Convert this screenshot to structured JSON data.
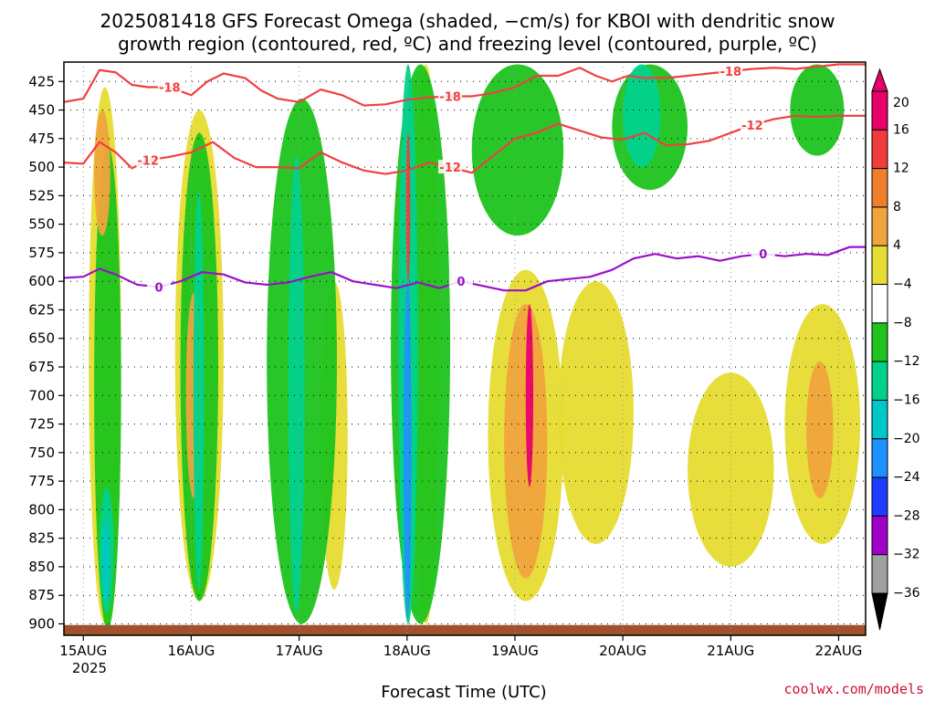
{
  "title_line1": "2025081418 GFS Forecast Omega (shaded, −cm/s) for KBOI with dendritic snow",
  "title_line2": "growth region (contoured, red, ºC) and freezing level (contoured, purple, ºC)",
  "credit": "coolwx.com/models",
  "chart_data": {
    "type": "heatmap",
    "title": "2025081418 GFS Forecast Omega (shaded, −cm/s) for KBOI with dendritic snow growth region (contoured, red, ºC) and freezing level (contoured, purple, ºC)",
    "xlabel": "Forecast Time (UTC)",
    "ylabel": "",
    "x_ticks": [
      "15AUG",
      "16AUG",
      "17AUG",
      "18AUG",
      "19AUG",
      "20AUG",
      "21AUG",
      "22AUG"
    ],
    "x_year": "2025",
    "y_ticks": [
      425,
      450,
      475,
      500,
      525,
      550,
      575,
      600,
      625,
      650,
      675,
      700,
      725,
      750,
      775,
      800,
      825,
      850,
      875,
      900
    ],
    "ylim": [
      408,
      910
    ],
    "xlim": [
      -0.18,
      7.25
    ],
    "grid": true,
    "colorbar": {
      "ticks": [
        "20",
        "16",
        "12",
        "8",
        "4",
        "−4",
        "−8",
        "−12",
        "−16",
        "−20",
        "−24",
        "−28",
        "−32",
        "−36"
      ],
      "colors": [
        "#e8006a",
        "#f03c3c",
        "#f07f2d",
        "#f0a43c",
        "#e6dc32",
        "#ffffff",
        "#1ec31e",
        "#00d28c",
        "#00c8c8",
        "#1e90ff",
        "#1e3cff",
        "#a000c8",
        "#a0a0a0"
      ]
    },
    "contours": [
      {
        "name": "-18",
        "color": "#f04040",
        "label": "-18",
        "x": [
          -0.18,
          0.0,
          0.15,
          0.3,
          0.45,
          0.6,
          0.8,
          1.0,
          1.15,
          1.3,
          1.5,
          1.65,
          1.8,
          2.0,
          2.2,
          2.4,
          2.6,
          2.8,
          3.0,
          3.2,
          3.4,
          3.6,
          3.8,
          4.0,
          4.2,
          4.4,
          4.6,
          4.75,
          4.9,
          5.05,
          5.2,
          5.4,
          5.6,
          5.8,
          6.0,
          6.2,
          6.4,
          6.6,
          6.8,
          7.0,
          7.25
        ],
        "y": [
          443,
          440,
          415,
          417,
          428,
          430,
          430,
          437,
          425,
          418,
          422,
          433,
          440,
          443,
          432,
          437,
          446,
          445,
          441,
          439,
          438,
          438,
          435,
          430,
          420,
          420,
          413,
          420,
          425,
          420,
          422,
          422,
          420,
          418,
          416,
          414,
          413,
          414,
          412,
          410,
          410
        ]
      },
      {
        "name": "-12",
        "color": "#f04040",
        "label": "-12",
        "x": [
          -0.18,
          0.0,
          0.15,
          0.3,
          0.45,
          0.6,
          0.8,
          1.0,
          1.2,
          1.4,
          1.6,
          1.8,
          2.0,
          2.2,
          2.4,
          2.6,
          2.8,
          3.0,
          3.2,
          3.4,
          3.6,
          3.8,
          4.0,
          4.2,
          4.4,
          4.6,
          4.8,
          5.0,
          5.2,
          5.4,
          5.6,
          5.8,
          6.0,
          6.2,
          6.4,
          6.6,
          6.8,
          7.0,
          7.25
        ],
        "y": [
          496,
          497,
          478,
          487,
          501,
          494,
          491,
          487,
          478,
          492,
          500,
          500,
          501,
          487,
          496,
          503,
          506,
          503,
          496,
          500,
          505,
          490,
          475,
          470,
          462,
          468,
          474,
          476,
          470,
          481,
          480,
          477,
          470,
          463,
          458,
          455,
          456,
          455,
          455
        ]
      },
      {
        "name": "0",
        "color": "#9a10c8",
        "label": "0",
        "x": [
          -0.18,
          0.0,
          0.15,
          0.3,
          0.5,
          0.7,
          0.9,
          1.1,
          1.3,
          1.5,
          1.7,
          1.9,
          2.1,
          2.3,
          2.5,
          2.7,
          2.9,
          3.1,
          3.3,
          3.5,
          3.7,
          3.9,
          4.1,
          4.3,
          4.5,
          4.7,
          4.9,
          5.1,
          5.3,
          5.5,
          5.7,
          5.9,
          6.1,
          6.3,
          6.5,
          6.7,
          6.9,
          7.1,
          7.25
        ],
        "y": [
          597,
          596,
          589,
          594,
          603,
          605,
          600,
          592,
          594,
          601,
          603,
          601,
          596,
          592,
          600,
          603,
          606,
          601,
          606,
          600,
          604,
          608,
          608,
          600,
          598,
          596,
          590,
          580,
          576,
          580,
          578,
          582,
          578,
          576,
          578,
          576,
          577,
          570,
          570
        ]
      }
    ],
    "shaded_regions": [
      {
        "value": -8,
        "x": [
          0.1,
          0.35
        ],
        "y": [
          480,
          905
        ]
      },
      {
        "value": -12,
        "x": [
          0.15,
          0.28
        ],
        "y": [
          780,
          890
        ]
      },
      {
        "value": -16,
        "x": [
          0.18,
          0.24
        ],
        "y": [
          810,
          880
        ]
      },
      {
        "value": -8,
        "x": [
          0.9,
          1.25
        ],
        "y": [
          470,
          880
        ]
      },
      {
        "value": -12,
        "x": [
          1.02,
          1.12
        ],
        "y": [
          520,
          870
        ]
      },
      {
        "value": -8,
        "x": [
          1.7,
          2.35
        ],
        "y": [
          440,
          900
        ]
      },
      {
        "value": -12,
        "x": [
          1.9,
          2.05
        ],
        "y": [
          490,
          890
        ]
      },
      {
        "value": -8,
        "x": [
          2.85,
          3.4
        ],
        "y": [
          410,
          900
        ]
      },
      {
        "value": -12,
        "x": [
          2.92,
          3.1
        ],
        "y": [
          410,
          900
        ]
      },
      {
        "value": -20,
        "x": [
          2.97,
          3.04
        ],
        "y": [
          600,
          895
        ]
      },
      {
        "value": -8,
        "x": [
          3.6,
          4.45
        ],
        "y": [
          410,
          560
        ]
      },
      {
        "value": -8,
        "x": [
          4.9,
          5.6
        ],
        "y": [
          410,
          520
        ]
      },
      {
        "value": -12,
        "x": [
          5.0,
          5.35
        ],
        "y": [
          410,
          500
        ]
      },
      {
        "value": -8,
        "x": [
          6.55,
          7.05
        ],
        "y": [
          410,
          490
        ]
      },
      {
        "value": 4,
        "x": [
          0.05,
          0.35
        ],
        "y": [
          430,
          900
        ]
      },
      {
        "value": 8,
        "x": [
          0.1,
          0.25
        ],
        "y": [
          450,
          560
        ]
      },
      {
        "value": 4,
        "x": [
          0.85,
          1.3
        ],
        "y": [
          450,
          880
        ]
      },
      {
        "value": 8,
        "x": [
          0.95,
          1.1
        ],
        "y": [
          610,
          790
        ]
      },
      {
        "value": 4,
        "x": [
          2.2,
          2.45
        ],
        "y": [
          600,
          870
        ]
      },
      {
        "value": 4,
        "x": [
          3.05,
          3.3
        ],
        "y": [
          410,
          900
        ]
      },
      {
        "value": 16,
        "x": [
          2.99,
          3.03
        ],
        "y": [
          470,
          600
        ]
      },
      {
        "value": 4,
        "x": [
          3.75,
          4.45
        ],
        "y": [
          590,
          880
        ]
      },
      {
        "value": 8,
        "x": [
          3.9,
          4.3
        ],
        "y": [
          620,
          860
        ]
      },
      {
        "value": 20,
        "x": [
          4.1,
          4.17
        ],
        "y": [
          620,
          780
        ]
      },
      {
        "value": 4,
        "x": [
          4.4,
          5.1
        ],
        "y": [
          600,
          830
        ]
      },
      {
        "value": 4,
        "x": [
          6.5,
          7.2
        ],
        "y": [
          620,
          830
        ]
      },
      {
        "value": 8,
        "x": [
          6.7,
          6.95
        ],
        "y": [
          670,
          790
        ]
      },
      {
        "value": 4,
        "x": [
          5.6,
          6.4
        ],
        "y": [
          680,
          850
        ]
      }
    ]
  }
}
